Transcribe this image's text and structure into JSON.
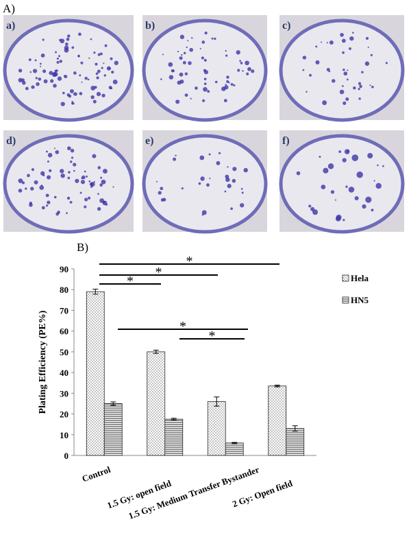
{
  "panel_a": {
    "label": "A)",
    "photos": [
      "a)",
      "b)",
      "c)",
      "d)",
      "e)",
      "f)"
    ]
  },
  "chart_data": {
    "type": "bar",
    "panel_label": "B)",
    "y_label": "Plating Efficiency (PE%)",
    "categories": [
      "Control",
      "1.5 Gy: open field",
      "1.5 Gy: Medium Transfer Bystander",
      "2 Gy: Open field"
    ],
    "series": [
      {
        "name": "Hela",
        "color": "#ffffff",
        "pattern": "dots",
        "values": [
          79,
          50,
          26,
          33.5
        ],
        "errors": [
          1.2,
          0.8,
          2.2,
          0.4
        ]
      },
      {
        "name": "HN5",
        "color": "#ffffff",
        "pattern": "hlines",
        "values": [
          25,
          17.5,
          6,
          13
        ],
        "errors": [
          0.8,
          0.4,
          0.3,
          1.3
        ]
      }
    ],
    "ylim": [
      0,
      90
    ],
    "yticks": [
      0,
      10,
      20,
      30,
      40,
      50,
      60,
      70,
      80,
      90
    ],
    "annotations": [
      "*",
      "*",
      "*",
      "*",
      "*"
    ],
    "legend": "top-right"
  }
}
